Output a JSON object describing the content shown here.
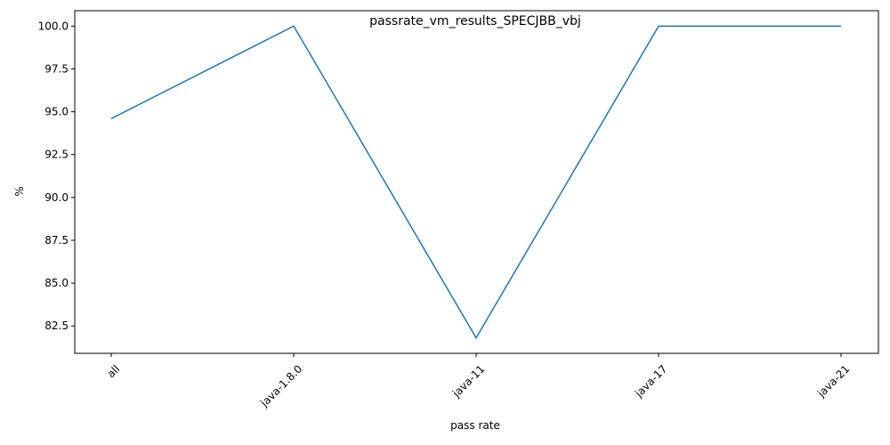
{
  "chart_data": {
    "type": "line",
    "title": "passrate_vm_results_SPECJBB_vbj",
    "xlabel": "pass rate",
    "ylabel": "%",
    "categories": [
      "all",
      "java-1.8.0",
      "java-11",
      "java-17",
      "java-21"
    ],
    "series": [
      {
        "values": [
          94.6,
          100.0,
          81.8,
          100.0,
          100.0
        ],
        "color": "#1f77b4"
      }
    ],
    "ylim": [
      80.9,
      100.9
    ],
    "yticks": [
      "82.5",
      "85.0",
      "87.5",
      "90.0",
      "92.5",
      "95.0",
      "97.5",
      "100.0"
    ],
    "grid": false,
    "legend": "none"
  }
}
